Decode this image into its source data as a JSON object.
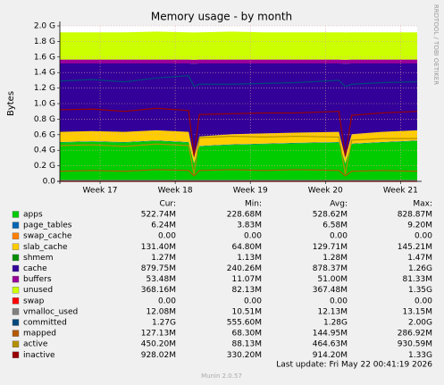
{
  "chart_data": {
    "type": "area",
    "title": "Memory usage - by month",
    "y_label": "Bytes",
    "side_text": "RRDTOOL / TOBI OETIKER",
    "columns": [
      "Cur:",
      "Min:",
      "Avg:",
      "Max:"
    ],
    "last_update": "Last update: Fri May 22 00:41:19 2026",
    "footer": "Munin 2.0.57",
    "grid": true,
    "xlim": [
      0,
      33.3
    ],
    "xticks": [
      {
        "value": 3.75,
        "label": "Week 17"
      },
      {
        "value": 10.75,
        "label": "Week 18"
      },
      {
        "value": 17.75,
        "label": "Week 19"
      },
      {
        "value": 24.75,
        "label": "Week 20"
      },
      {
        "value": 31.75,
        "label": "Week 21"
      }
    ],
    "ylim": [
      0,
      2.0
    ],
    "yticks": [
      {
        "value": 0,
        "label": "0.0"
      },
      {
        "value": 0.2,
        "label": "0.2 G"
      },
      {
        "value": 0.4,
        "label": "0.4 G"
      },
      {
        "value": 0.6,
        "label": "0.6 G"
      },
      {
        "value": 0.8,
        "label": "0.8 G"
      },
      {
        "value": 1.0,
        "label": "1.0 G"
      },
      {
        "value": 1.2,
        "label": "1.2 G"
      },
      {
        "value": 1.4,
        "label": "1.4 G"
      },
      {
        "value": 1.6,
        "label": "1.6 G"
      },
      {
        "value": 1.8,
        "label": "1.8 G"
      },
      {
        "value": 2.0,
        "label": "2.0 G"
      }
    ],
    "x": [
      0,
      3,
      6,
      9,
      12,
      12.5,
      13,
      16,
      19,
      22,
      26,
      26.6,
      27.2,
      30,
      33.3
    ],
    "series": [
      {
        "name": "apps",
        "color": "#00CC00",
        "style": "stack",
        "cur": "522.74M",
        "min": "228.68M",
        "avg": "528.62M",
        "max": "828.87M",
        "values": [
          0.5,
          0.51,
          0.5,
          0.52,
          0.5,
          0.23,
          0.45,
          0.47,
          0.48,
          0.49,
          0.5,
          0.23,
          0.48,
          0.5,
          0.52
        ]
      },
      {
        "name": "page_tables",
        "color": "#0066B3",
        "style": "stack",
        "cur": "6.24M",
        "min": "3.83M",
        "avg": "6.58M",
        "max": "9.20M",
        "values": [
          0.006,
          0.006,
          0.006,
          0.006,
          0.006,
          0.004,
          0.006,
          0.006,
          0.006,
          0.006,
          0.006,
          0.004,
          0.006,
          0.006,
          0.006
        ]
      },
      {
        "name": "swap_cache",
        "color": "#FF8000",
        "style": "stack",
        "cur": "0.00",
        "min": "0.00",
        "avg": "0.00",
        "max": "0.00",
        "values": [
          0,
          0,
          0,
          0,
          0,
          0,
          0,
          0,
          0,
          0,
          0,
          0,
          0,
          0,
          0
        ]
      },
      {
        "name": "slab_cache",
        "color": "#FFCC00",
        "style": "stack",
        "cur": "131.40M",
        "min": "64.80M",
        "avg": "129.71M",
        "max": "145.21M",
        "values": [
          0.13,
          0.13,
          0.13,
          0.13,
          0.13,
          0.07,
          0.12,
          0.13,
          0.13,
          0.13,
          0.13,
          0.07,
          0.12,
          0.13,
          0.13
        ]
      },
      {
        "name": "shmem",
        "color": "#008F00",
        "style": "stack",
        "cur": "1.27M",
        "min": "1.13M",
        "avg": "1.28M",
        "max": "1.47M",
        "values": [
          0.001,
          0.001,
          0.001,
          0.001,
          0.001,
          0.001,
          0.001,
          0.001,
          0.001,
          0.001,
          0.001,
          0.001,
          0.001,
          0.001,
          0.001
        ]
      },
      {
        "name": "cache",
        "color": "#330099",
        "style": "stack",
        "cur": "879.75M",
        "min": "240.26M",
        "avg": "878.37M",
        "max": "1.26G",
        "values": [
          0.88,
          0.87,
          0.88,
          0.86,
          0.88,
          1.21,
          0.94,
          0.91,
          0.9,
          0.89,
          0.88,
          1.21,
          0.91,
          0.88,
          0.86
        ]
      },
      {
        "name": "buffers",
        "color": "#990099",
        "style": "stack",
        "cur": "53.48M",
        "min": "11.07M",
        "avg": "51.00M",
        "max": "81.33M",
        "values": [
          0.05,
          0.05,
          0.05,
          0.05,
          0.05,
          0.05,
          0.05,
          0.05,
          0.05,
          0.05,
          0.05,
          0.05,
          0.05,
          0.05,
          0.05
        ]
      },
      {
        "name": "unused",
        "color": "#CCFF00",
        "style": "stack",
        "cur": "368.16M",
        "min": "82.13M",
        "avg": "367.48M",
        "max": "1.35G",
        "values": [
          0.35,
          0.35,
          0.35,
          0.36,
          0.35,
          0.35,
          0.35,
          0.36,
          0.35,
          0.35,
          0.35,
          0.35,
          0.35,
          0.35,
          0.35
        ]
      },
      {
        "name": "swap",
        "color": "#FF0000",
        "style": "line",
        "cur": "0.00",
        "min": "0.00",
        "avg": "0.00",
        "max": "0.00",
        "values": [
          0,
          0,
          0,
          0,
          0,
          0,
          0,
          0,
          0,
          0,
          0,
          0,
          0,
          0,
          0
        ]
      },
      {
        "name": "vmalloc_used",
        "color": "#808080",
        "style": "line",
        "cur": "12.08M",
        "min": "10.51M",
        "avg": "12.13M",
        "max": "13.15M",
        "values": [
          0.012,
          0.012,
          0.012,
          0.012,
          0.012,
          0.011,
          0.012,
          0.012,
          0.012,
          0.012,
          0.012,
          0.011,
          0.012,
          0.012,
          0.012
        ]
      },
      {
        "name": "committed",
        "color": "#00487D",
        "style": "line",
        "cur": "1.27G",
        "min": "555.60M",
        "avg": "1.28G",
        "max": "2.00G",
        "values": [
          1.29,
          1.31,
          1.28,
          1.33,
          1.36,
          1.22,
          1.25,
          1.25,
          1.26,
          1.27,
          1.3,
          1.22,
          1.25,
          1.27,
          1.28
        ]
      },
      {
        "name": "mapped",
        "color": "#B35A00",
        "style": "line",
        "cur": "127.13M",
        "min": "68.30M",
        "avg": "144.95M",
        "max": "286.92M",
        "values": [
          0.13,
          0.14,
          0.13,
          0.15,
          0.14,
          0.07,
          0.14,
          0.15,
          0.14,
          0.15,
          0.14,
          0.07,
          0.13,
          0.14,
          0.13
        ]
      },
      {
        "name": "active",
        "color": "#B38F00",
        "style": "line",
        "cur": "450.20M",
        "min": "88.13M",
        "avg": "464.63M",
        "max": "930.59M",
        "values": [
          0.46,
          0.47,
          0.45,
          0.48,
          0.46,
          0.09,
          0.56,
          0.58,
          0.57,
          0.58,
          0.57,
          0.09,
          0.53,
          0.55,
          0.55
        ]
      },
      {
        "name": "inactive",
        "color": "#990000",
        "style": "line",
        "cur": "928.02M",
        "min": "330.20M",
        "avg": "914.20M",
        "max": "1.33G",
        "values": [
          0.92,
          0.93,
          0.9,
          0.94,
          0.91,
          0.33,
          0.86,
          0.87,
          0.88,
          0.88,
          0.9,
          0.33,
          0.85,
          0.88,
          0.9
        ]
      }
    ]
  }
}
